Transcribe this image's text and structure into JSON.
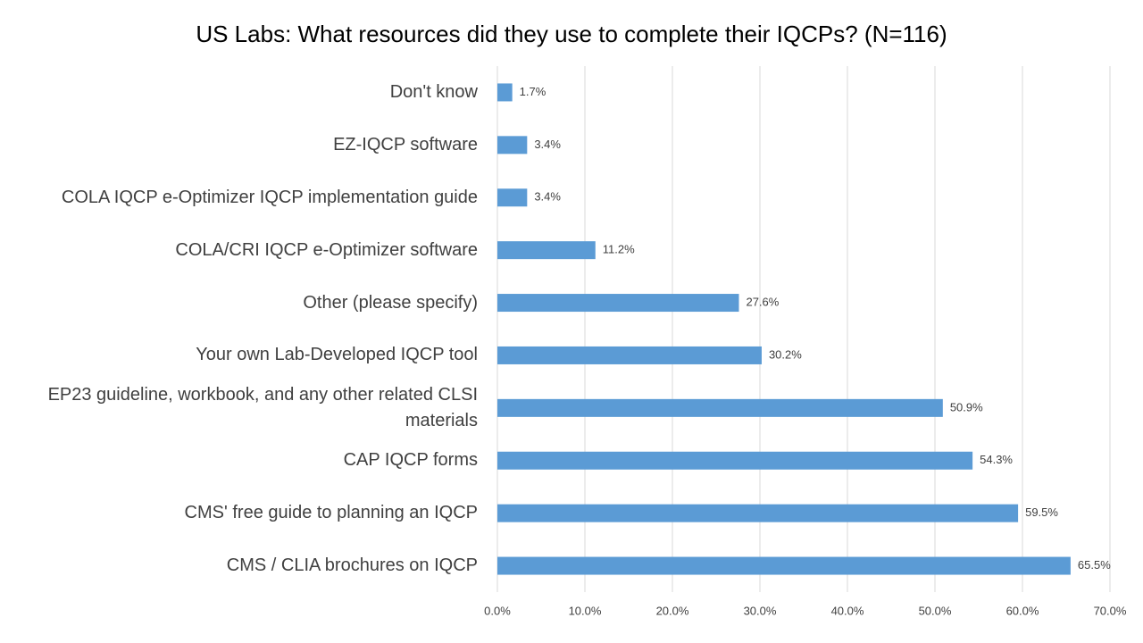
{
  "chart_data": {
    "type": "bar",
    "orientation": "horizontal",
    "title": "US Labs: What resources did they use to complete their IQCPs? (N=116)",
    "categories": [
      "Don't know",
      "EZ-IQCP software",
      "COLA IQCP e-Optimizer IQCP implementation guide",
      "COLA/CRI IQCP e-Optimizer software",
      "Other (please specify)",
      "Your own Lab-Developed IQCP tool",
      "EP23 guideline, workbook, and any other related CLSI materials",
      "CAP IQCP forms",
      "CMS' free guide to planning an IQCP",
      "CMS / CLIA brochures on IQCP"
    ],
    "values": [
      1.7,
      3.4,
      3.4,
      11.2,
      27.6,
      30.2,
      50.9,
      54.3,
      59.5,
      65.5
    ],
    "value_labels": [
      "1.7%",
      "3.4%",
      "3.4%",
      "11.2%",
      "27.6%",
      "30.2%",
      "50.9%",
      "54.3%",
      "59.5%",
      "65.5%"
    ],
    "color": "#5b9bd5",
    "xlim": [
      0,
      70
    ],
    "xticks": [
      {
        "value": 0,
        "label": "0.0%"
      },
      {
        "value": 10,
        "label": "10.0%"
      },
      {
        "value": 20,
        "label": "20.0%"
      },
      {
        "value": 30,
        "label": "30.0%"
      },
      {
        "value": 40,
        "label": "40.0%"
      },
      {
        "value": 50,
        "label": "50.0%"
      },
      {
        "value": 60,
        "label": "60.0%"
      },
      {
        "value": 70,
        "label": "70.0%"
      }
    ],
    "grid": true
  }
}
